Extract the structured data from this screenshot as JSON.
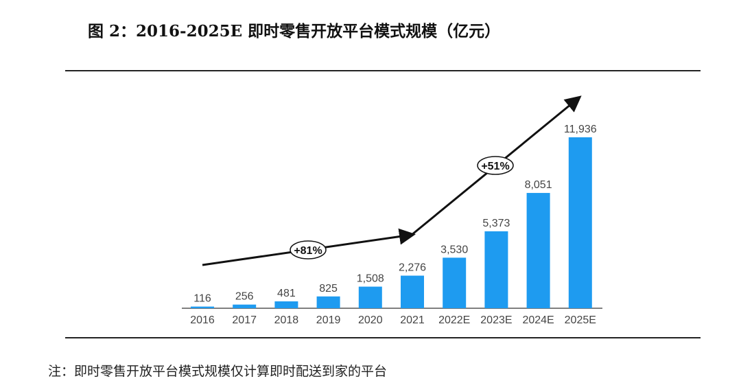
{
  "title": "图 2：2016-2025E 即时零售开放平台模式规模（亿元）",
  "note": "注：即时零售开放平台模式规模仅计算即时配送到家的平台",
  "chart_data": {
    "type": "bar",
    "categories": [
      "2016",
      "2017",
      "2018",
      "2019",
      "2020",
      "2021",
      "2022E",
      "2023E",
      "2024E",
      "2025E"
    ],
    "values": [
      116,
      256,
      481,
      825,
      1508,
      2276,
      3530,
      5373,
      8051,
      11936
    ],
    "data_labels": [
      "116",
      "256",
      "481",
      "825",
      "1,508",
      "2,276",
      "3,530",
      "5,373",
      "8,051",
      "11,936"
    ],
    "bar_color": "#1E9BF0",
    "annotations": [
      {
        "text": "+81%",
        "from": "2016",
        "to": "2021"
      },
      {
        "text": "+51%",
        "from": "2021",
        "to": "2025E"
      }
    ],
    "grid": false,
    "ylim": [
      0,
      12000
    ]
  }
}
